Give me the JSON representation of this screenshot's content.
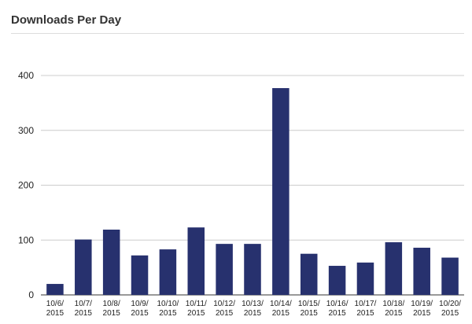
{
  "header": {
    "title": "Downloads Per Day"
  },
  "chart_data": {
    "type": "bar",
    "title": "Downloads Per Day",
    "xlabel": "",
    "ylabel": "",
    "categories": [
      [
        "10/6/",
        "2015"
      ],
      [
        "10/7/",
        "2015"
      ],
      [
        "10/8/",
        "2015"
      ],
      [
        "10/9/",
        "2015"
      ],
      [
        "10/10/",
        "2015"
      ],
      [
        "10/11/",
        "2015"
      ],
      [
        "10/12/",
        "2015"
      ],
      [
        "10/13/",
        "2015"
      ],
      [
        "10/14/",
        "2015"
      ],
      [
        "10/15/",
        "2015"
      ],
      [
        "10/16/",
        "2015"
      ],
      [
        "10/17/",
        "2015"
      ],
      [
        "10/18/",
        "2015"
      ],
      [
        "10/19/",
        "2015"
      ],
      [
        "10/20/",
        "2015"
      ]
    ],
    "values": [
      20,
      101,
      119,
      72,
      83,
      123,
      93,
      93,
      377,
      75,
      53,
      59,
      96,
      86,
      68
    ],
    "ylim": [
      0,
      400
    ],
    "yticks": [
      0,
      100,
      200,
      300,
      400
    ],
    "grid": true,
    "bar_color": "#27316e",
    "grid_color": "#cccccc"
  }
}
